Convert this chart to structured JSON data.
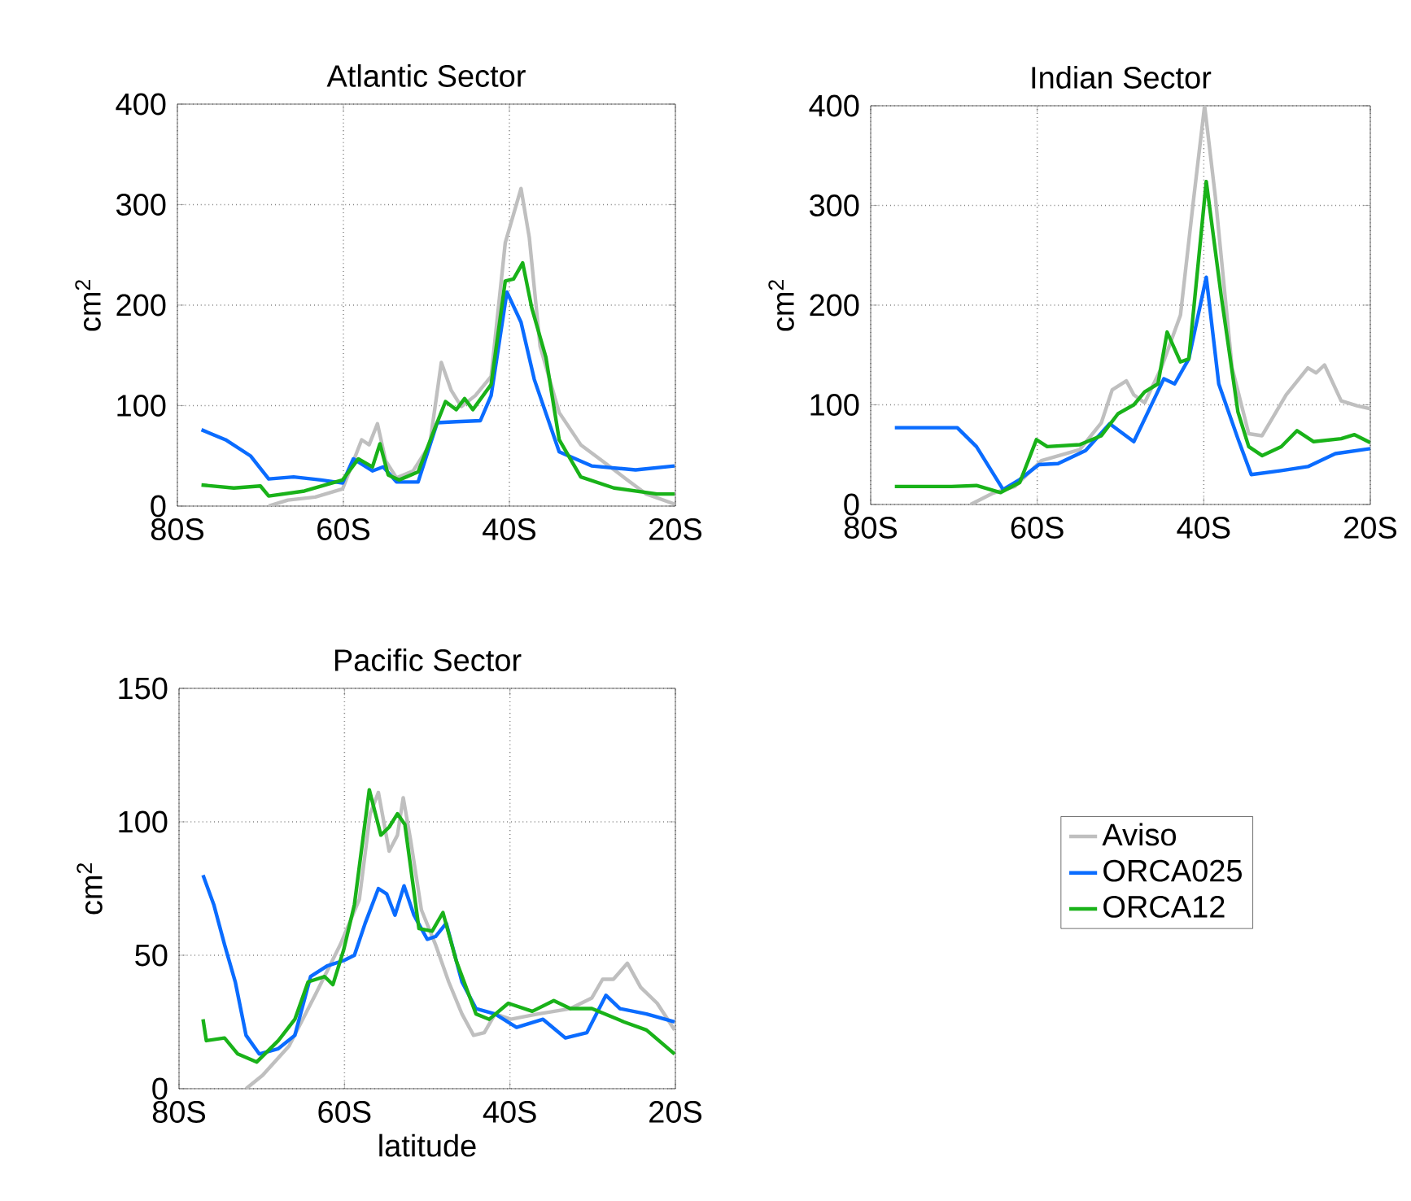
{
  "chart_data": [
    {
      "type": "line",
      "title": "Atlantic Sector",
      "ylabel": "cm$^{2}$",
      "xlim": [
        -80,
        -20
      ],
      "ylim": [
        0,
        400
      ],
      "xticks": [
        {
          "value": -80,
          "label": "80S"
        },
        {
          "value": -60,
          "label": "60S"
        },
        {
          "value": -40,
          "label": "40S"
        },
        {
          "value": -20,
          "label": "20S"
        }
      ],
      "yticks": [
        0,
        100,
        200,
        300,
        400
      ],
      "grid": true,
      "series": [
        {
          "color": "#bfbfbf",
          "x": [
            -69,
            -66.7,
            -63.4,
            -60.1,
            -57.8,
            -56.9,
            -55.9,
            -54.9,
            -53.6,
            -51.6,
            -49.6,
            -48.2,
            -47,
            -45.8,
            -44.1,
            -42.2,
            -40.5,
            -38.6,
            -37.6,
            -36.3,
            -34,
            -31.4,
            -28.8,
            -26.1,
            -23.5,
            -20.1
          ],
          "values": [
            0,
            6,
            9,
            17,
            66,
            61,
            82,
            45,
            28,
            35,
            61,
            143,
            115,
            99,
            110,
            129,
            262,
            316,
            267,
            159,
            93,
            61,
            45,
            28,
            12,
            2
          ]
        },
        {
          "color": "#0a6cff",
          "x": [
            -77.1,
            -74.2,
            -71.2,
            -69,
            -66,
            -62.7,
            -60.1,
            -58.8,
            -56.5,
            -55.2,
            -53.6,
            -51,
            -48.7,
            -46.4,
            -43.5,
            -42.2,
            -40.3,
            -38.6,
            -37,
            -34,
            -30.1,
            -24.8,
            -20.1
          ],
          "values": [
            76,
            66,
            50,
            27,
            29,
            26,
            23,
            47,
            35,
            39,
            24,
            24,
            83,
            84,
            85,
            110,
            213,
            183,
            126,
            54,
            40,
            36,
            40
          ]
        },
        {
          "color": "#19b219",
          "x": [
            -77.1,
            -73.2,
            -70,
            -69,
            -64.7,
            -60.1,
            -58.2,
            -56.5,
            -55.6,
            -54.6,
            -53.3,
            -51,
            -49,
            -47.7,
            -46.4,
            -45.4,
            -44.4,
            -42.2,
            -40.5,
            -39.5,
            -38.4,
            -37.3,
            -35.6,
            -34,
            -31.4,
            -27.4,
            -22.2,
            -20.1
          ],
          "values": [
            21,
            18,
            20,
            10,
            15,
            26,
            47,
            39,
            62,
            31,
            26,
            34,
            77,
            104,
            96,
            107,
            96,
            121,
            224,
            226,
            242,
            197,
            148,
            66,
            29,
            18,
            12,
            12
          ]
        }
      ]
    },
    {
      "type": "line",
      "title": "Indian Sector",
      "ylabel": "cm$^{2}$",
      "xlim": [
        -80,
        -20
      ],
      "ylim": [
        0,
        400
      ],
      "xticks": [
        {
          "value": -80,
          "label": "80S"
        },
        {
          "value": -60,
          "label": "60S"
        },
        {
          "value": -40,
          "label": "40S"
        },
        {
          "value": -20,
          "label": "20S"
        }
      ],
      "yticks": [
        0,
        100,
        200,
        300,
        400
      ],
      "grid": true,
      "series": [
        {
          "color": "#bfbfbf",
          "x": [
            -68,
            -65.4,
            -62.7,
            -59.5,
            -54.9,
            -52.3,
            -51,
            -49.3,
            -48.4,
            -47.1,
            -45.1,
            -42.8,
            -41.2,
            -39.9,
            -38.6,
            -36.6,
            -34.6,
            -33,
            -30.1,
            -27.5,
            -26.5,
            -25.5,
            -23.5,
            -21.6,
            -20
          ],
          "values": [
            0,
            11,
            18,
            44,
            55,
            82,
            115,
            124,
            110,
            102,
            137,
            190,
            308,
            400,
            308,
            137,
            71,
            69,
            110,
            137,
            132,
            140,
            104,
            99,
            96
          ]
        },
        {
          "color": "#0a6cff",
          "x": [
            -77.1,
            -69.6,
            -67.3,
            -64.1,
            -62.1,
            -59.8,
            -57.5,
            -54.2,
            -51.3,
            -48.4,
            -44.8,
            -43.5,
            -41.8,
            -39.7,
            -38.2,
            -35.9,
            -34.3,
            -30.7,
            -27.5,
            -24.2,
            -20
          ],
          "values": [
            77,
            77,
            58,
            15,
            25,
            40,
            41,
            54,
            81,
            63,
            126,
            121,
            146,
            228,
            121,
            66,
            30,
            34,
            38,
            51,
            56
          ]
        },
        {
          "color": "#19b219",
          "x": [
            -77.1,
            -70.3,
            -67.3,
            -64.4,
            -62.1,
            -60.1,
            -58.8,
            -54.9,
            -52.3,
            -50.3,
            -48.4,
            -47.1,
            -45.5,
            -44.4,
            -42.8,
            -41.8,
            -39.7,
            -37.9,
            -35.9,
            -34.6,
            -33,
            -30.7,
            -28.8,
            -26.8,
            -23.5,
            -21.9,
            -20
          ],
          "values": [
            18,
            18,
            19,
            12,
            22,
            65,
            58,
            60,
            69,
            91,
            100,
            113,
            121,
            173,
            143,
            146,
            324,
            209,
            93,
            58,
            49,
            58,
            74,
            63,
            66,
            70,
            62
          ]
        }
      ]
    },
    {
      "type": "line",
      "title": "Pacific Sector",
      "xlabel": "latitude",
      "ylabel": "cm$^{2}$",
      "xlim": [
        -80,
        -20
      ],
      "ylim": [
        0,
        150
      ],
      "xticks": [
        {
          "value": -80,
          "label": "80S"
        },
        {
          "value": -60,
          "label": "60S"
        },
        {
          "value": -40,
          "label": "40S"
        },
        {
          "value": -20,
          "label": "20S"
        }
      ],
      "yticks": [
        0,
        50,
        100,
        150
      ],
      "grid": true,
      "legend": "right",
      "series": [
        {
          "name": "Aviso",
          "color": "#bfbfbf",
          "x": [
            -71.9,
            -69.9,
            -66.7,
            -63.4,
            -60.5,
            -58.2,
            -56.9,
            -55.9,
            -54.6,
            -53.6,
            -52.9,
            -52,
            -50.7,
            -49,
            -47.4,
            -45.8,
            -44.4,
            -43.1,
            -41.8,
            -39.9,
            -36.6,
            -32.7,
            -30.1,
            -28.8,
            -27.5,
            -25.8,
            -24.2,
            -22.2,
            -20.1
          ],
          "values": [
            0,
            5,
            16,
            36,
            54,
            71,
            103,
            111,
            89,
            95,
            109,
            93,
            67,
            54,
            40,
            28,
            20,
            21,
            28,
            26,
            28,
            30,
            34,
            41,
            41,
            47,
            38,
            32,
            22
          ]
        },
        {
          "name": "ORCA025",
          "color": "#0a6cff",
          "x": [
            -77.1,
            -75.8,
            -74.5,
            -73.2,
            -71.9,
            -70.3,
            -68,
            -66,
            -64.1,
            -62.1,
            -60.1,
            -58.8,
            -57.5,
            -55.9,
            -54.9,
            -53.9,
            -52.8,
            -51.6,
            -50,
            -49,
            -47.7,
            -45.8,
            -44.1,
            -41.8,
            -39.2,
            -36,
            -33.3,
            -30.7,
            -28.4,
            -26.7,
            -23.5,
            -20.1
          ],
          "values": [
            80,
            69,
            54,
            40,
            20,
            13,
            15,
            20,
            42,
            46,
            48,
            50,
            62,
            75,
            73,
            65,
            76,
            65,
            56,
            57,
            62,
            40,
            30,
            28,
            23,
            26,
            19,
            21,
            35,
            30,
            28,
            25
          ]
        },
        {
          "name": "ORCA12",
          "color": "#19b219",
          "x": [
            -77.1,
            -76.7,
            -74.5,
            -72.9,
            -70.6,
            -68,
            -66,
            -64.4,
            -62.4,
            -61.4,
            -60.1,
            -58.8,
            -57,
            -55.6,
            -54.6,
            -53.6,
            -52.7,
            -51,
            -49.4,
            -48.1,
            -46.5,
            -44.1,
            -42.5,
            -40.2,
            -37.3,
            -34.7,
            -32.7,
            -30.1,
            -26.2,
            -23.5,
            -20.1
          ],
          "values": [
            26,
            18,
            19,
            13,
            10,
            18,
            26,
            40,
            42,
            39,
            52,
            69,
            112,
            95,
            98,
            103,
            99,
            60,
            59,
            66,
            48,
            28,
            26,
            32,
            29,
            33,
            30,
            30,
            25,
            22,
            13
          ]
        }
      ]
    }
  ]
}
